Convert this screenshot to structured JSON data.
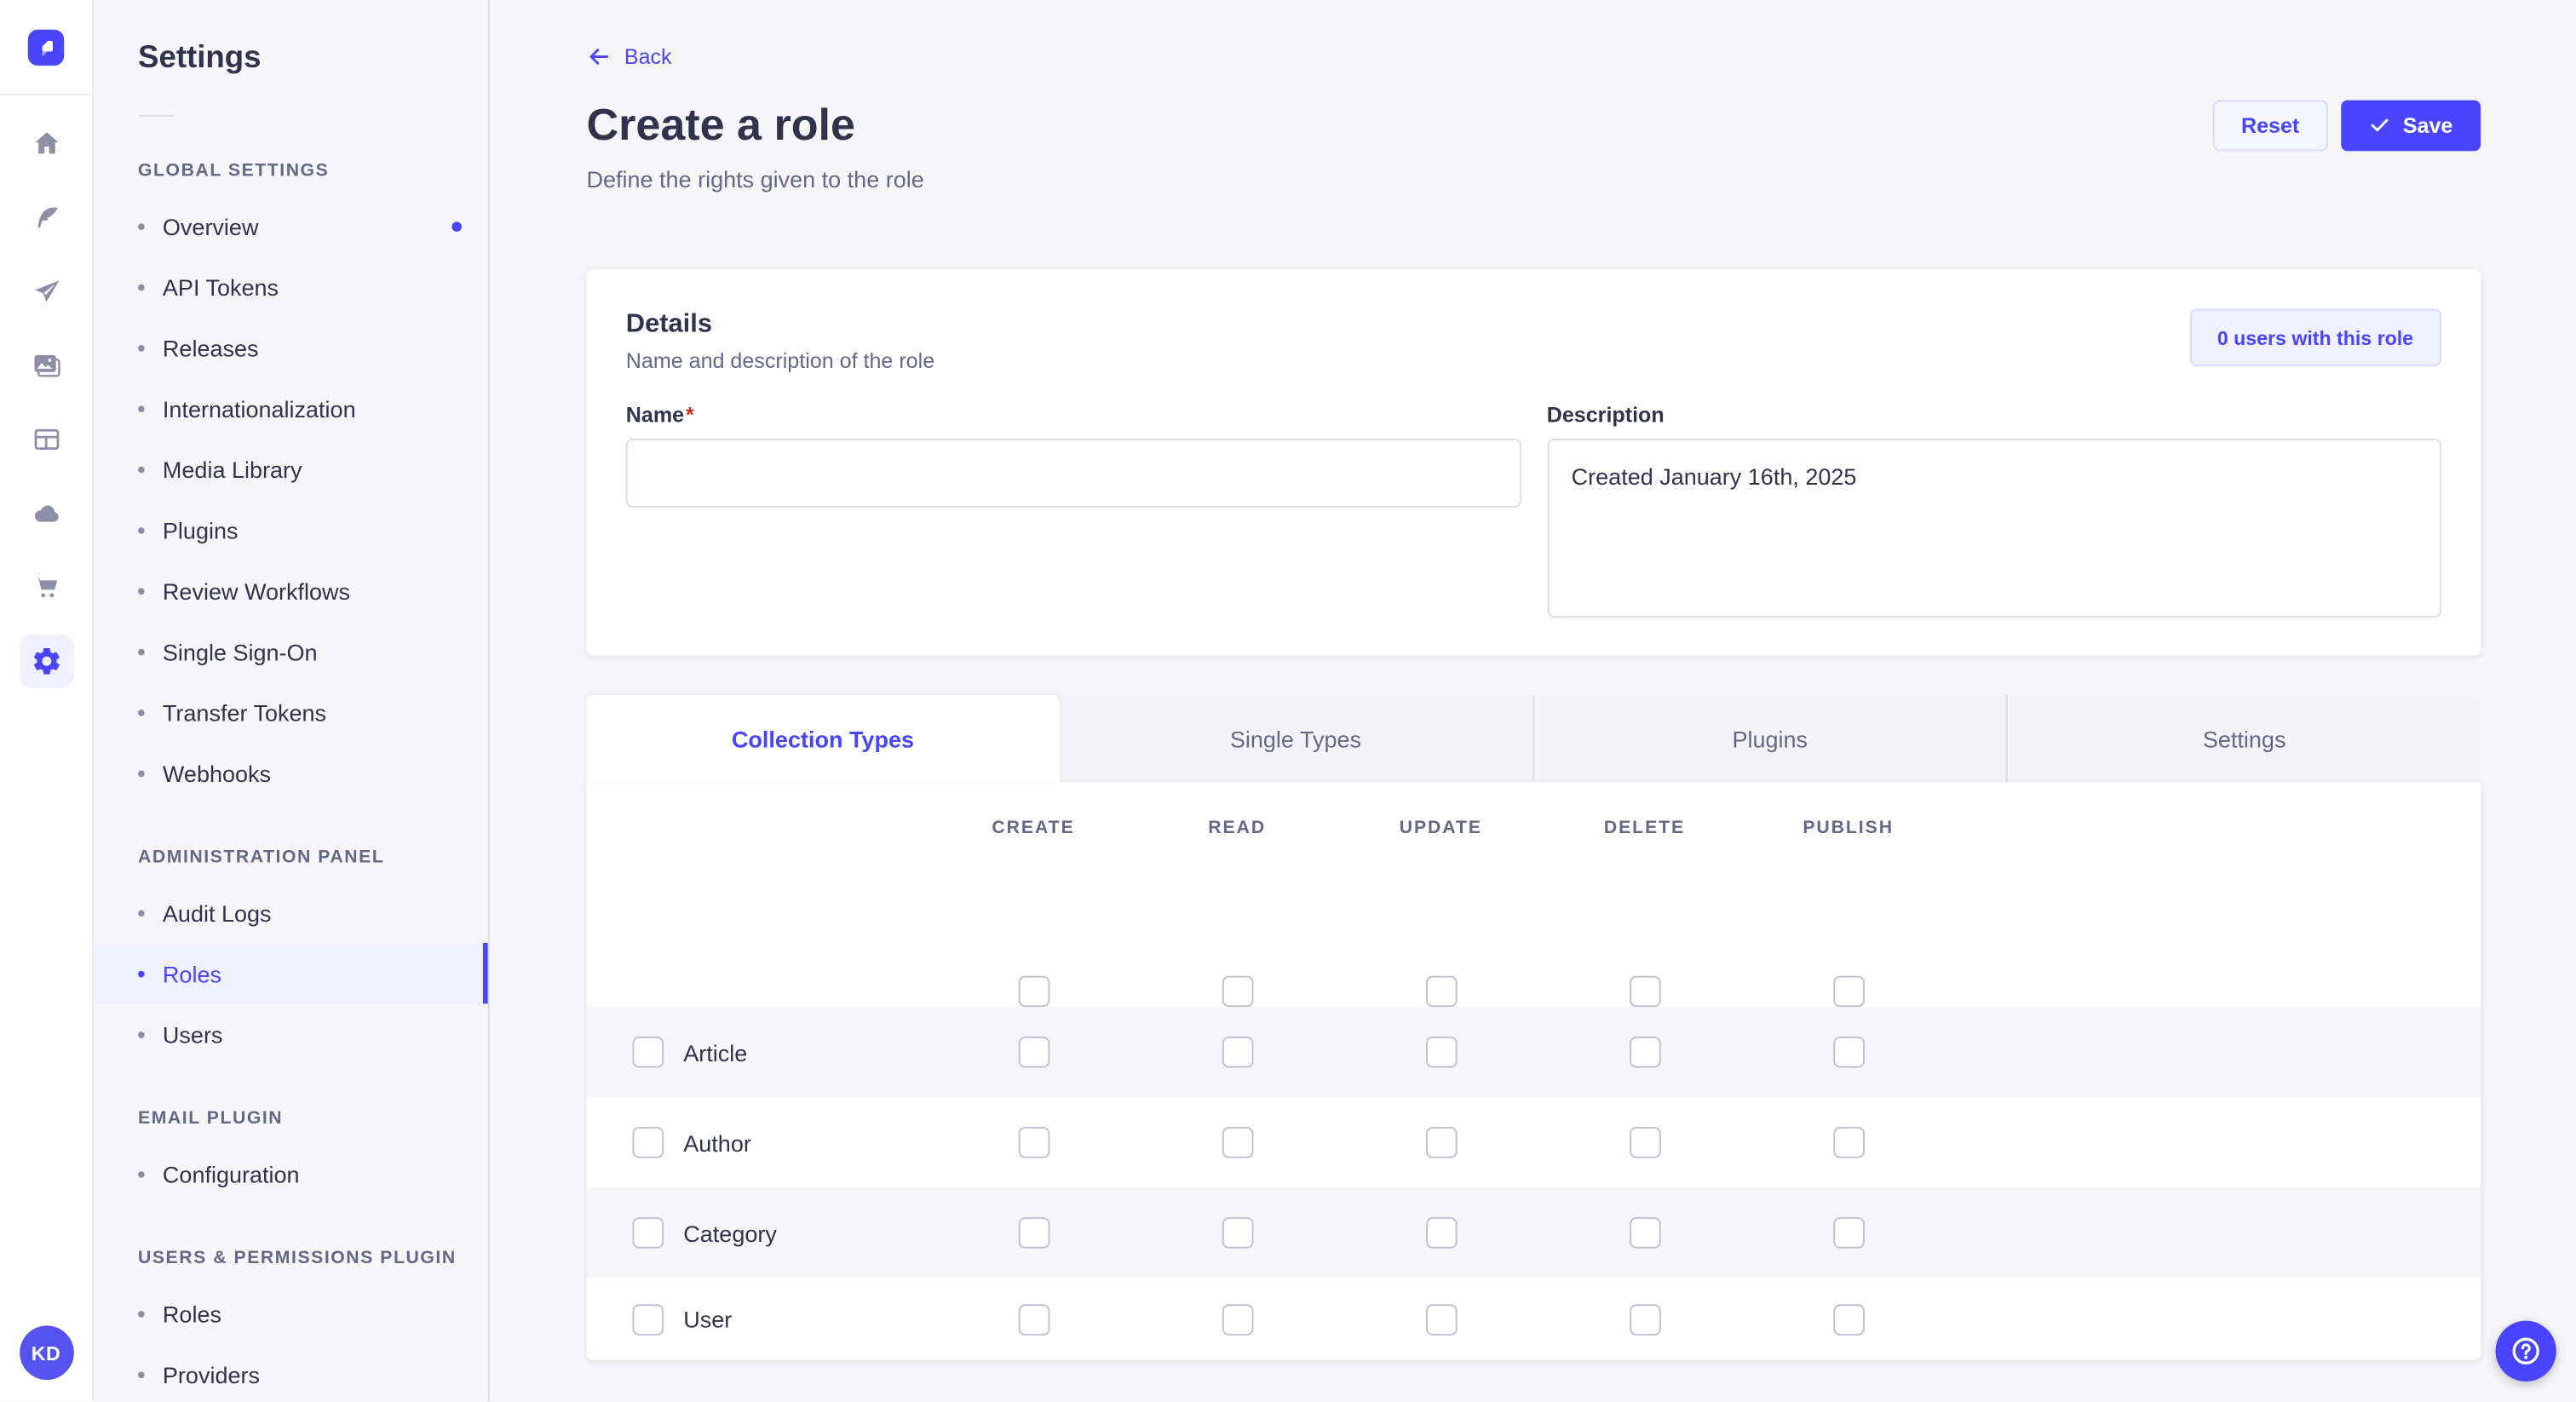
{
  "colors": {
    "accent": "#4945ff",
    "accent_light_bg": "#f0f0ff",
    "accent_border": "#d9d8ff",
    "text_dark": "#32324d",
    "text_muted": "#666687",
    "page_bg": "#f6f6f9",
    "border": "#dcdce4",
    "checkbox_border": "#c0c0cf",
    "required_red": "#d02b20"
  },
  "rail": {
    "logo_icon": "strapi-logo",
    "icons": [
      "home-icon",
      "feather-icon",
      "paper-plane-icon",
      "media-library-icon",
      "layout-icon",
      "cloud-icon",
      "cart-icon",
      "gear-icon"
    ],
    "active_icon": "gear-icon",
    "avatar_initials": "KD"
  },
  "subnav": {
    "title": "Settings",
    "sections": [
      {
        "label": "GLOBAL SETTINGS",
        "items": [
          {
            "label": "Overview",
            "dot": true
          },
          {
            "label": "API Tokens"
          },
          {
            "label": "Releases"
          },
          {
            "label": "Internationalization"
          },
          {
            "label": "Media Library"
          },
          {
            "label": "Plugins"
          },
          {
            "label": "Review Workflows"
          },
          {
            "label": "Single Sign-On"
          },
          {
            "label": "Transfer Tokens"
          },
          {
            "label": "Webhooks"
          }
        ]
      },
      {
        "label": "ADMINISTRATION PANEL",
        "items": [
          {
            "label": "Audit Logs"
          },
          {
            "label": "Roles",
            "active": true
          },
          {
            "label": "Users"
          }
        ]
      },
      {
        "label": "EMAIL PLUGIN",
        "items": [
          {
            "label": "Configuration"
          }
        ]
      },
      {
        "label": "USERS & PERMISSIONS PLUGIN",
        "items": [
          {
            "label": "Roles"
          },
          {
            "label": "Providers"
          }
        ]
      }
    ]
  },
  "header": {
    "back_label": "Back",
    "title": "Create a role",
    "subtitle": "Define the rights given to the role",
    "reset_label": "Reset",
    "save_label": "Save"
  },
  "details": {
    "title": "Details",
    "subtitle": "Name and description of the role",
    "users_badge": "0 users with this role",
    "name_label": "Name",
    "name_required": "*",
    "name_value": "",
    "description_label": "Description",
    "description_value": "Created January 16th, 2025"
  },
  "tabs": [
    {
      "label": "Collection Types",
      "active": true
    },
    {
      "label": "Single Types"
    },
    {
      "label": "Plugins"
    },
    {
      "label": "Settings"
    }
  ],
  "permissions": {
    "columns": [
      "CREATE",
      "READ",
      "UPDATE",
      "DELETE",
      "PUBLISH"
    ],
    "rows": [
      {
        "label": "Article",
        "checked": [
          false,
          false,
          false,
          false,
          false
        ]
      },
      {
        "label": "Author",
        "checked": [
          false,
          false,
          false,
          false,
          false
        ]
      },
      {
        "label": "Category",
        "checked": [
          false,
          false,
          false,
          false,
          false
        ]
      },
      {
        "label": "User",
        "checked": [
          false,
          false,
          false,
          false,
          false
        ]
      }
    ],
    "select_all_checked": [
      false,
      false,
      false,
      false,
      false
    ]
  },
  "help_button": {
    "icon": "question-mark-icon"
  }
}
